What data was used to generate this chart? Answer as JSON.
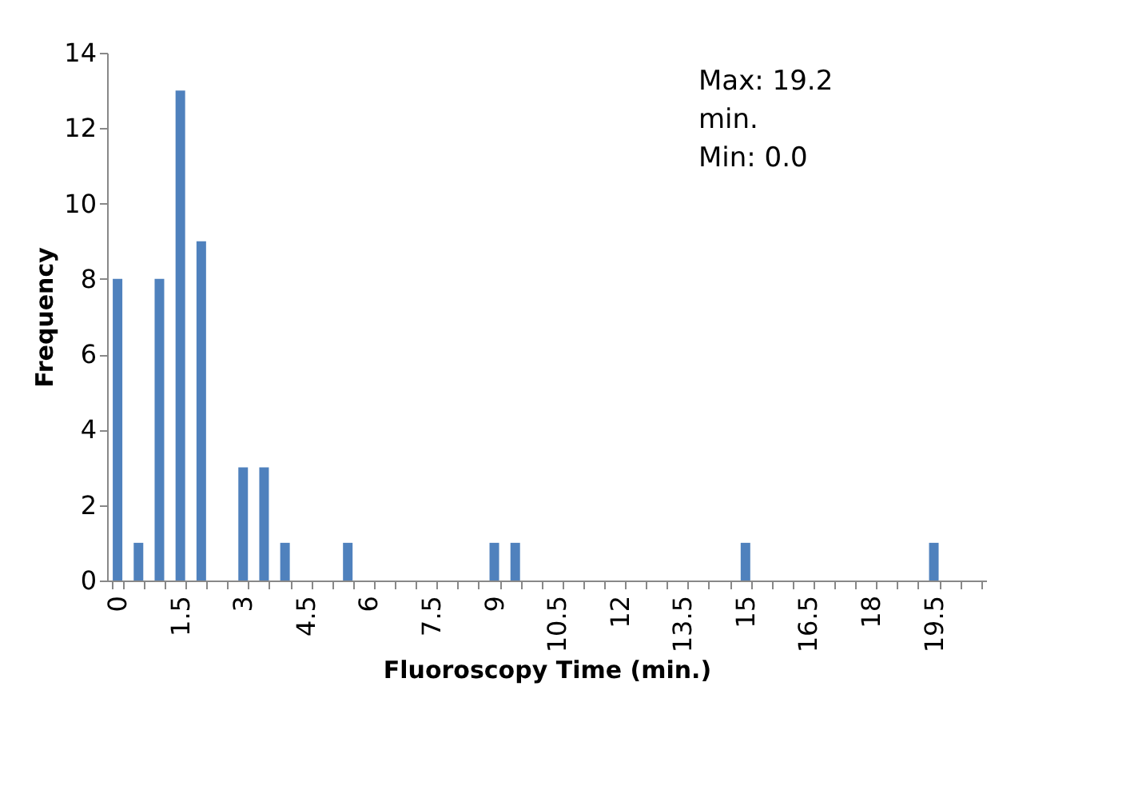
{
  "chart_data": {
    "type": "bar",
    "xlabel": "Fluoroscopy Time (min.)",
    "ylabel": "Frequency",
    "categories": [
      "0",
      null,
      null,
      "1.5",
      null,
      null,
      "3",
      null,
      null,
      "4.5",
      null,
      null,
      "6",
      null,
      null,
      "7.5",
      null,
      null,
      "9",
      null,
      null,
      "10.5",
      null,
      null,
      "12",
      null,
      null,
      "13.5",
      null,
      null,
      "15",
      null,
      null,
      "16.5",
      null,
      null,
      "18",
      null,
      null,
      "19.5",
      null,
      null
    ],
    "values": [
      8,
      1,
      8,
      13,
      9,
      0,
      3,
      3,
      1,
      0,
      0,
      1,
      0,
      0,
      0,
      0,
      0,
      0,
      1,
      1,
      0,
      0,
      0,
      0,
      0,
      0,
      0,
      0,
      0,
      0,
      1,
      0,
      0,
      0,
      0,
      0,
      0,
      0,
      0,
      1,
      0,
      0
    ],
    "color": "#4f81bd",
    "ylim": [
      0,
      14
    ],
    "yticks": [
      0,
      2,
      4,
      6,
      8,
      10,
      12,
      14
    ],
    "grid": false,
    "annotations": [
      "Max: 19.2\nmin.\nMin: 0.0"
    ]
  }
}
